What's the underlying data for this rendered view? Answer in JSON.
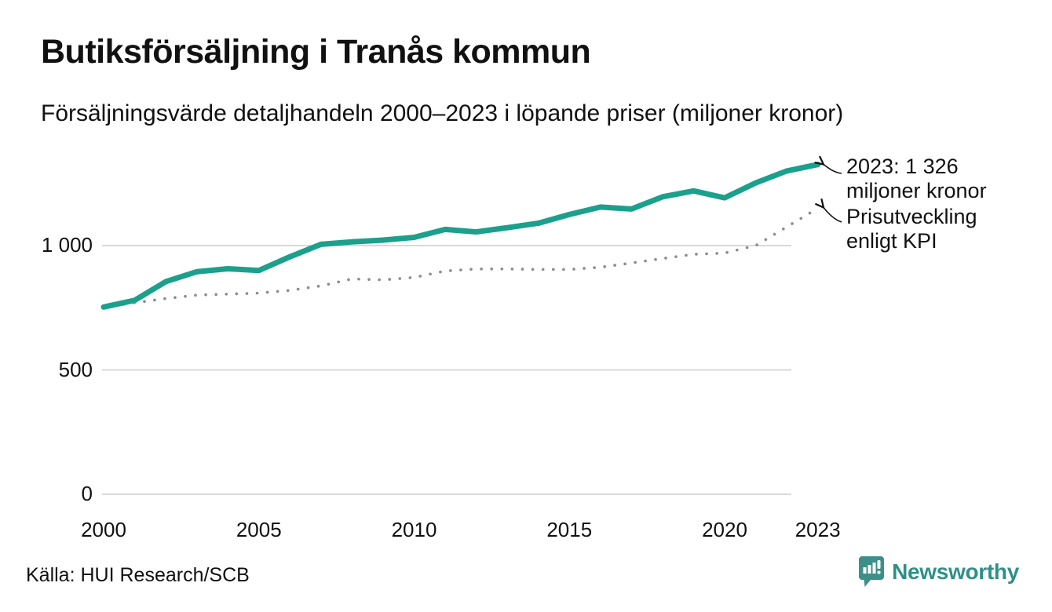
{
  "title": "Butiksförsäljning i Tranås kommun",
  "subtitle": "Försäljningsvärde detaljhandeln 2000–2023 i löpande priser (miljoner kronor)",
  "source": "Källa: HUI Research/SCB",
  "logo": {
    "name": "Newsworthy"
  },
  "colors": {
    "accent": "#1ba08c",
    "kpi_dotted": "#8d8d8d",
    "grid": "#d9d9d9",
    "text": "#111111",
    "logo_teal": "#3d8f8a"
  },
  "chart_data": {
    "type": "line",
    "title": "Butiksförsäljning i Tranås kommun",
    "subtitle": "Försäljningsvärde detaljhandeln 2000–2023 i löpande priser (miljoner kronor)",
    "xlabel": "",
    "ylabel": "miljoner kronor",
    "ylim": [
      0,
      1360
    ],
    "grid": "horizontal",
    "legend_position": "annotations-right",
    "x": [
      2000,
      2001,
      2002,
      2003,
      2004,
      2005,
      2006,
      2007,
      2008,
      2009,
      2010,
      2011,
      2012,
      2013,
      2014,
      2015,
      2016,
      2017,
      2018,
      2019,
      2020,
      2021,
      2022,
      2023
    ],
    "series": [
      {
        "name": "Försäljningsvärde löpande priser",
        "style": "solid",
        "color": "#1ba08c",
        "values": [
          753,
          780,
          855,
          895,
          907,
          900,
          955,
          1005,
          1015,
          1022,
          1033,
          1065,
          1055,
          1072,
          1090,
          1125,
          1155,
          1147,
          1196,
          1220,
          1192,
          1252,
          1300,
          1326
        ]
      },
      {
        "name": "Prisutveckling enligt KPI",
        "style": "dotted",
        "color": "#8d8d8d",
        "values": [
          753,
          770,
          787,
          801,
          805,
          809,
          820,
          838,
          866,
          862,
          872,
          898,
          906,
          906,
          904,
          904,
          913,
          930,
          948,
          965,
          970,
          1000,
          1075,
          1150
        ]
      }
    ],
    "y_ticks": [
      {
        "value": 0,
        "label": "0"
      },
      {
        "value": 500,
        "label": "500"
      },
      {
        "value": 1000,
        "label": "1 000"
      }
    ],
    "x_ticks": [
      {
        "value": 2000,
        "label": "2000"
      },
      {
        "value": 2005,
        "label": "2005"
      },
      {
        "value": 2010,
        "label": "2010"
      },
      {
        "value": 2015,
        "label": "2015"
      },
      {
        "value": 2020,
        "label": "2020"
      },
      {
        "value": 2023,
        "label": "2023"
      }
    ],
    "annotations": [
      {
        "lines": [
          "2023: 1 326",
          "miljoner kronor"
        ],
        "target_series": "Försäljningsvärde löpande priser"
      },
      {
        "lines": [
          "Prisutveckling",
          "enligt KPI"
        ],
        "target_series": "Prisutveckling enligt KPI"
      }
    ]
  }
}
